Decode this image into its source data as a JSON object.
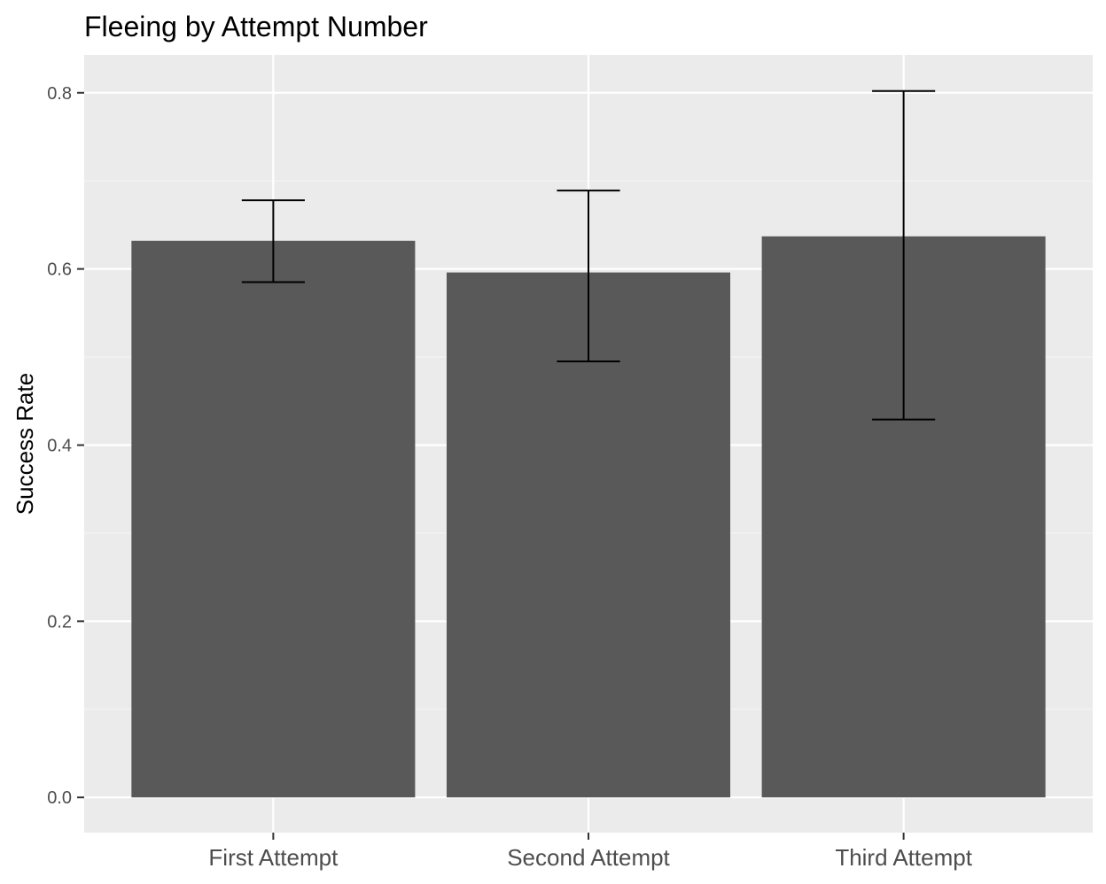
{
  "chart_data": {
    "type": "bar",
    "title": "Fleeing by Attempt Number",
    "xlabel": "",
    "ylabel": "Success Rate",
    "categories": [
      "First Attempt",
      "Second Attempt",
      "Third Attempt"
    ],
    "values": [
      0.632,
      0.596,
      0.637
    ],
    "error_bars": {
      "lower": [
        0.585,
        0.495,
        0.429
      ],
      "upper": [
        0.678,
        0.689,
        0.802
      ]
    },
    "ylim": [
      -0.04,
      0.843
    ],
    "yticks": [
      0.0,
      0.2,
      0.4,
      0.6,
      0.8
    ],
    "ytick_labels": [
      "0.0",
      "0.2",
      "0.4",
      "0.6",
      "0.8"
    ],
    "grid": true,
    "legend": "none",
    "colors": {
      "bar": "#595959",
      "panel_background": "#ebebeb",
      "grid_major": "#ffffff",
      "grid_minor": "#f5f5f5",
      "error_bar": "#000000",
      "tick": "#333333"
    }
  }
}
